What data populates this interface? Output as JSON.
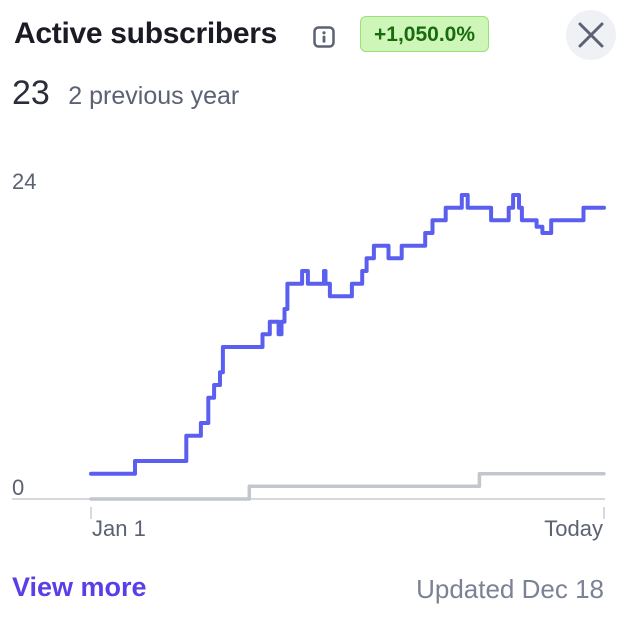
{
  "header": {
    "title": "Active subscribers",
    "info_icon": "info-icon",
    "change_badge": "+1,050.0%",
    "close_icon": "close-icon"
  },
  "summary": {
    "value": "23",
    "previous": "2 previous year"
  },
  "footer": {
    "link": "View more",
    "updated": "Updated Dec 18"
  },
  "colors": {
    "current": "#5b5ff0",
    "previous": "#c2c6ce",
    "badge_bg": "#cdf6b8",
    "badge_text": "#1a6a0e",
    "link": "#5a3ee6"
  },
  "chart_data": {
    "type": "line",
    "x_domain": [
      0,
      350
    ],
    "ylim": [
      0,
      24
    ],
    "y_ticks": [
      "0",
      "24"
    ],
    "x_ticks": [
      {
        "label": "Jan 1",
        "x": 0
      },
      {
        "label": "Today",
        "x": 350
      }
    ],
    "series": [
      {
        "role": "current",
        "steps": [
          [
            0,
            2
          ],
          [
            30,
            2
          ],
          [
            30,
            3
          ],
          [
            65,
            3
          ],
          [
            65,
            5
          ],
          [
            75,
            5
          ],
          [
            75,
            6
          ],
          [
            80,
            6
          ],
          [
            80,
            8
          ],
          [
            84,
            8
          ],
          [
            84,
            9
          ],
          [
            88,
            9
          ],
          [
            88,
            10
          ],
          [
            90,
            10
          ],
          [
            90,
            12
          ],
          [
            117,
            12
          ],
          [
            117,
            13
          ],
          [
            122,
            13
          ],
          [
            122,
            14
          ],
          [
            128,
            14
          ],
          [
            128,
            13
          ],
          [
            130,
            13
          ],
          [
            130,
            14
          ],
          [
            132,
            14
          ],
          [
            132,
            15
          ],
          [
            134,
            15
          ],
          [
            134,
            17
          ],
          [
            144,
            17
          ],
          [
            144,
            18
          ],
          [
            148,
            18
          ],
          [
            148,
            17
          ],
          [
            159,
            17
          ],
          [
            159,
            18
          ],
          [
            160,
            18
          ],
          [
            160,
            17
          ],
          [
            163,
            17
          ],
          [
            163,
            16
          ],
          [
            178,
            16
          ],
          [
            178,
            17
          ],
          [
            185,
            17
          ],
          [
            185,
            18
          ],
          [
            188,
            18
          ],
          [
            188,
            19
          ],
          [
            193,
            19
          ],
          [
            193,
            20
          ],
          [
            203,
            20
          ],
          [
            203,
            19
          ],
          [
            212,
            19
          ],
          [
            212,
            20
          ],
          [
            228,
            20
          ],
          [
            228,
            21
          ],
          [
            233,
            21
          ],
          [
            233,
            22
          ],
          [
            242,
            22
          ],
          [
            242,
            23
          ],
          [
            253,
            23
          ],
          [
            253,
            24
          ],
          [
            257,
            24
          ],
          [
            257,
            23
          ],
          [
            273,
            23
          ],
          [
            273,
            22
          ],
          [
            285,
            22
          ],
          [
            285,
            23
          ],
          [
            288,
            23
          ],
          [
            288,
            24
          ],
          [
            292,
            24
          ],
          [
            292,
            23
          ],
          [
            294,
            23
          ],
          [
            294,
            22
          ],
          [
            304,
            22
          ],
          [
            304,
            21.5
          ],
          [
            308,
            21.5
          ],
          [
            308,
            21
          ],
          [
            314,
            21
          ],
          [
            314,
            22
          ],
          [
            336,
            22
          ],
          [
            336,
            23
          ],
          [
            350,
            23
          ]
        ]
      },
      {
        "role": "previous",
        "steps": [
          [
            0,
            0
          ],
          [
            108,
            0
          ],
          [
            108,
            1
          ],
          [
            265,
            1
          ],
          [
            265,
            2
          ],
          [
            350,
            2
          ]
        ]
      }
    ]
  }
}
